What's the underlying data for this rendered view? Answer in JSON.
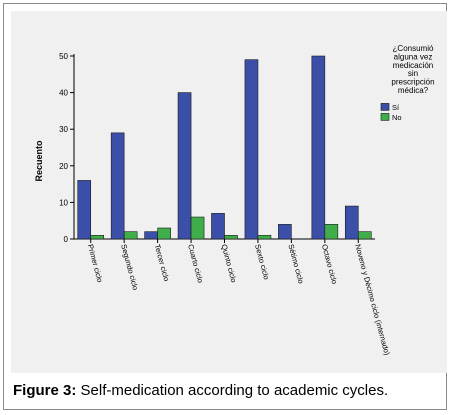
{
  "chart_data": {
    "type": "bar",
    "ylabel": "Recuento",
    "xlabel": "",
    "ylim": [
      0,
      50
    ],
    "yticks": [
      0,
      10,
      20,
      30,
      40,
      50
    ],
    "categories": [
      "Primer ciclo",
      "Segundo ciclo",
      "Tercer ciclo",
      "Cuarto ciclo",
      "Quinto ciclo",
      "Sexto ciclo",
      "Sétimo ciclo",
      "Octavo ciclo",
      "Noveno y Décimo ciclo (internado)"
    ],
    "series": [
      {
        "name": "Sí",
        "color": "#3b4fa8",
        "values": [
          16,
          29,
          2,
          40,
          7,
          49,
          4,
          50,
          9
        ]
      },
      {
        "name": "No",
        "color": "#3fae4a",
        "values": [
          1,
          2,
          3,
          6,
          1,
          1,
          0,
          4,
          2
        ]
      }
    ],
    "legend": {
      "title_lines": [
        "¿Consumió",
        "alguna vez",
        "medicación",
        "sin",
        "prescripción",
        "médica?"
      ],
      "placement": "right"
    },
    "grid": false
  },
  "caption": {
    "label": "Figure 3:",
    "text": " Self-medication according to academic cycles."
  }
}
